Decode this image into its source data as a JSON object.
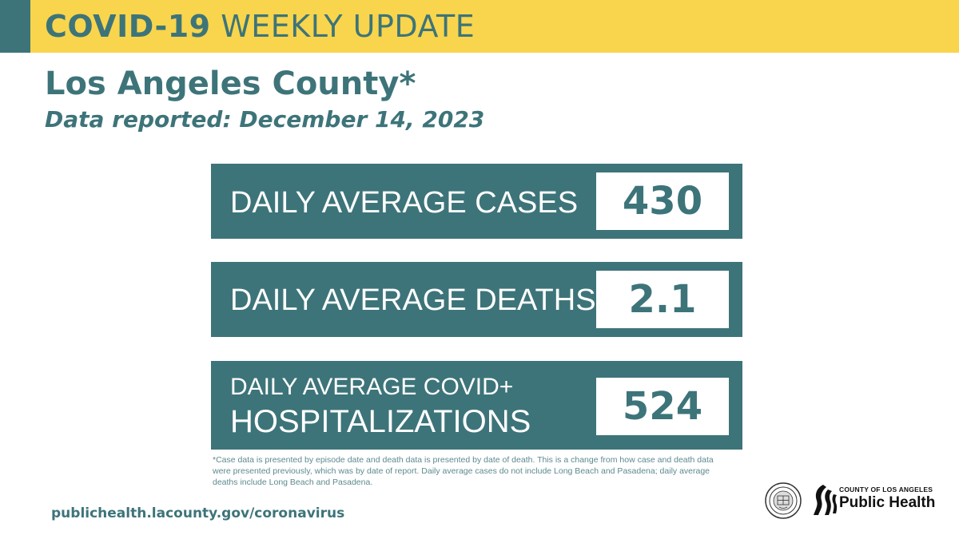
{
  "banner": {
    "title_bold": "COVID-19",
    "title_rest": "WEEKLY UPDATE",
    "accent_color": "#3d7479",
    "background_color": "#f8d54c"
  },
  "header": {
    "county": "Los Angeles County*",
    "reported": "Data reported: December 14, 2023"
  },
  "stats": [
    {
      "label": "DAILY AVERAGE CASES",
      "value": "430"
    },
    {
      "label": "DAILY AVERAGE DEATHS",
      "value": "2.1"
    },
    {
      "label_line1": "DAILY AVERAGE COVID+",
      "label_line2": "HOSPITALIZATIONS",
      "value": "524"
    }
  ],
  "footnote": "*Case data is presented by episode date and death data is presented by date of death. This is a change from how case and death data were presented previously, which was by date of report. Daily average cases do not include Long Beach and Pasadena; daily average deaths include Long Beach and Pasadena.",
  "footer": {
    "url": "publichealth.lacounty.gov/coronavirus",
    "logo_small": "COUNTY OF LOS ANGELES",
    "logo_big": "Public Health"
  },
  "colors": {
    "primary_teal": "#3d7479",
    "yellow": "#f8d54c",
    "white": "#ffffff"
  }
}
